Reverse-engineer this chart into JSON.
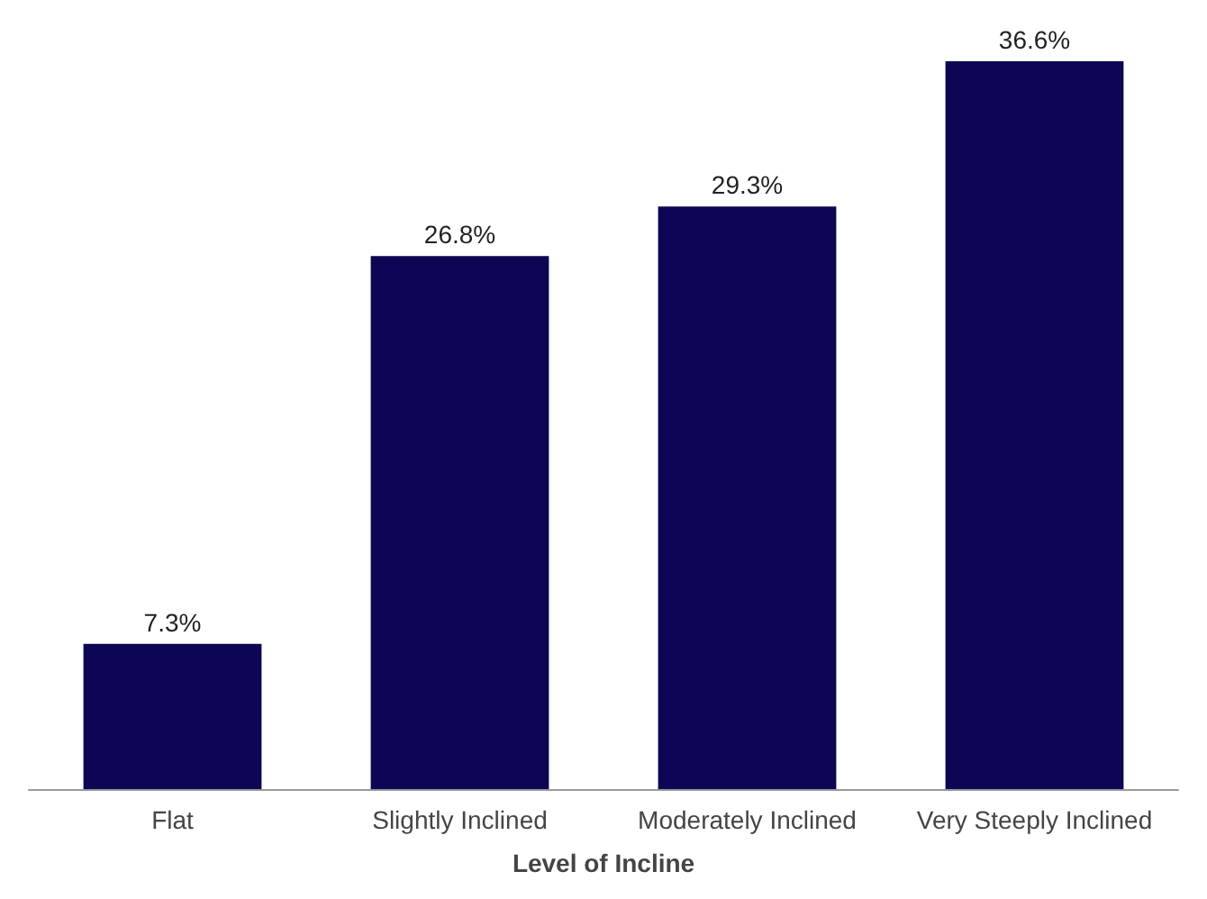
{
  "chart_data": {
    "type": "bar",
    "xlabel": "Level of Incline",
    "categories": [
      "Flat",
      "Slightly Inclined",
      "Moderately Inclined",
      "Very Steeply Inclined"
    ],
    "values": [
      7.3,
      26.8,
      29.3,
      36.6
    ],
    "value_labels": [
      "7.3%",
      "26.8%",
      "29.3%",
      "36.6%"
    ],
    "color": "#0c0654"
  }
}
